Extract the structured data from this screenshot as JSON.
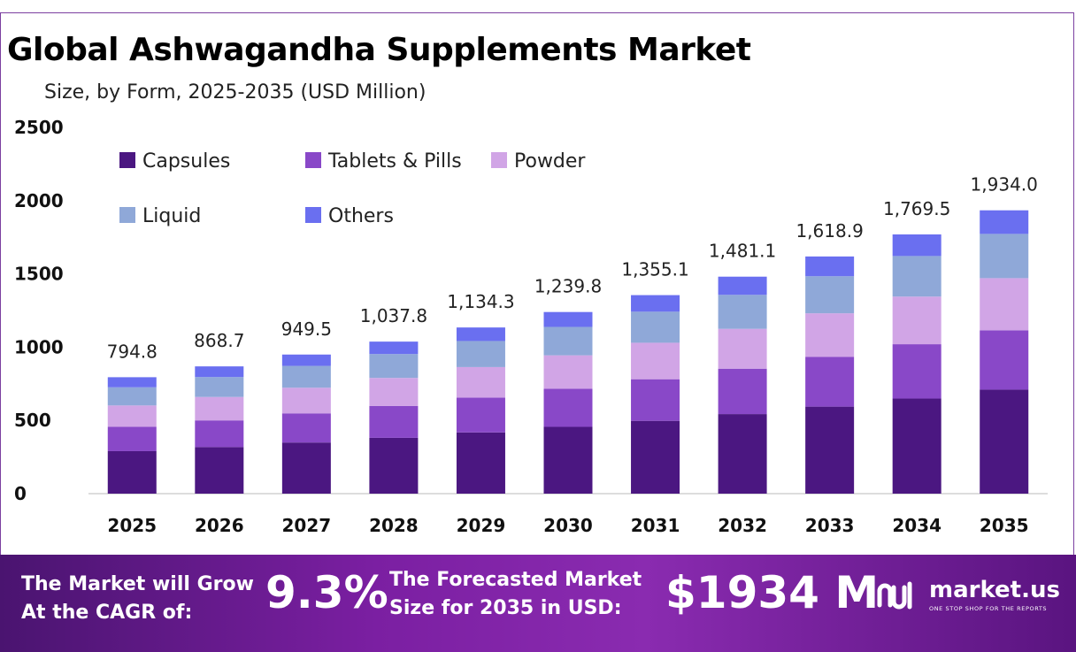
{
  "title": "Global Ashwagandha Supplements Market",
  "subtitle": "Size, by Form, 2025-2035 (USD Million)",
  "colors": {
    "capsules": "#4b1781",
    "tablets": "#8948c8",
    "powder": "#d1a5e6",
    "liquid": "#8fa8d8",
    "others": "#6a6ff0"
  },
  "chart_data": {
    "type": "bar",
    "stacked": true,
    "categories": [
      "2025",
      "2026",
      "2027",
      "2028",
      "2029",
      "2030",
      "2031",
      "2032",
      "2033",
      "2034",
      "2035"
    ],
    "series": [
      {
        "name": "Capsules",
        "values": [
          290,
          318,
          349,
          381,
          418,
          456,
          497,
          543,
          594,
          649,
          710
        ]
      },
      {
        "name": "Tablets & Pills",
        "values": [
          166,
          182,
          199,
          218,
          237,
          260,
          284,
          310,
          339,
          371,
          405
        ]
      },
      {
        "name": "Powder",
        "values": [
          146,
          160,
          175,
          191,
          209,
          228,
          249,
          272,
          298,
          325,
          356
        ]
      },
      {
        "name": "Liquid",
        "values": [
          124,
          136,
          149,
          163,
          178,
          194,
          212,
          232,
          253,
          277,
          302
        ]
      },
      {
        "name": "Others",
        "values": [
          68.8,
          72.7,
          77.5,
          84.8,
          92.3,
          101.8,
          113.1,
          124.1,
          134.9,
          147.5,
          161.0
        ]
      }
    ],
    "totals": [
      794.8,
      868.7,
      949.5,
      1037.8,
      1134.3,
      1239.8,
      1355.1,
      1481.1,
      1618.9,
      1769.5,
      1934.0
    ],
    "total_labels": [
      "794.8",
      "868.7",
      "949.5",
      "1,037.8",
      "1,134.3",
      "1,239.8",
      "1,355.1",
      "1,481.1",
      "1,618.9",
      "1,769.5",
      "1,934.0"
    ],
    "yticks": [
      "0",
      "500",
      "1000",
      "1500",
      "2000",
      "2500"
    ],
    "ylim": [
      0,
      2500
    ],
    "legend_position": "top-left",
    "grid": false
  },
  "footer": {
    "cagr_line1": "The Market will Grow",
    "cagr_line2": "At the CAGR of:",
    "cagr_value": "9.3%",
    "size_line1": "The Forecasted Market",
    "size_line2": "Size for 2035 in USD:",
    "size_value": "$1934 M",
    "brand_name": "market.us",
    "brand_tagline": "ONE STOP SHOP FOR THE REPORTS"
  }
}
